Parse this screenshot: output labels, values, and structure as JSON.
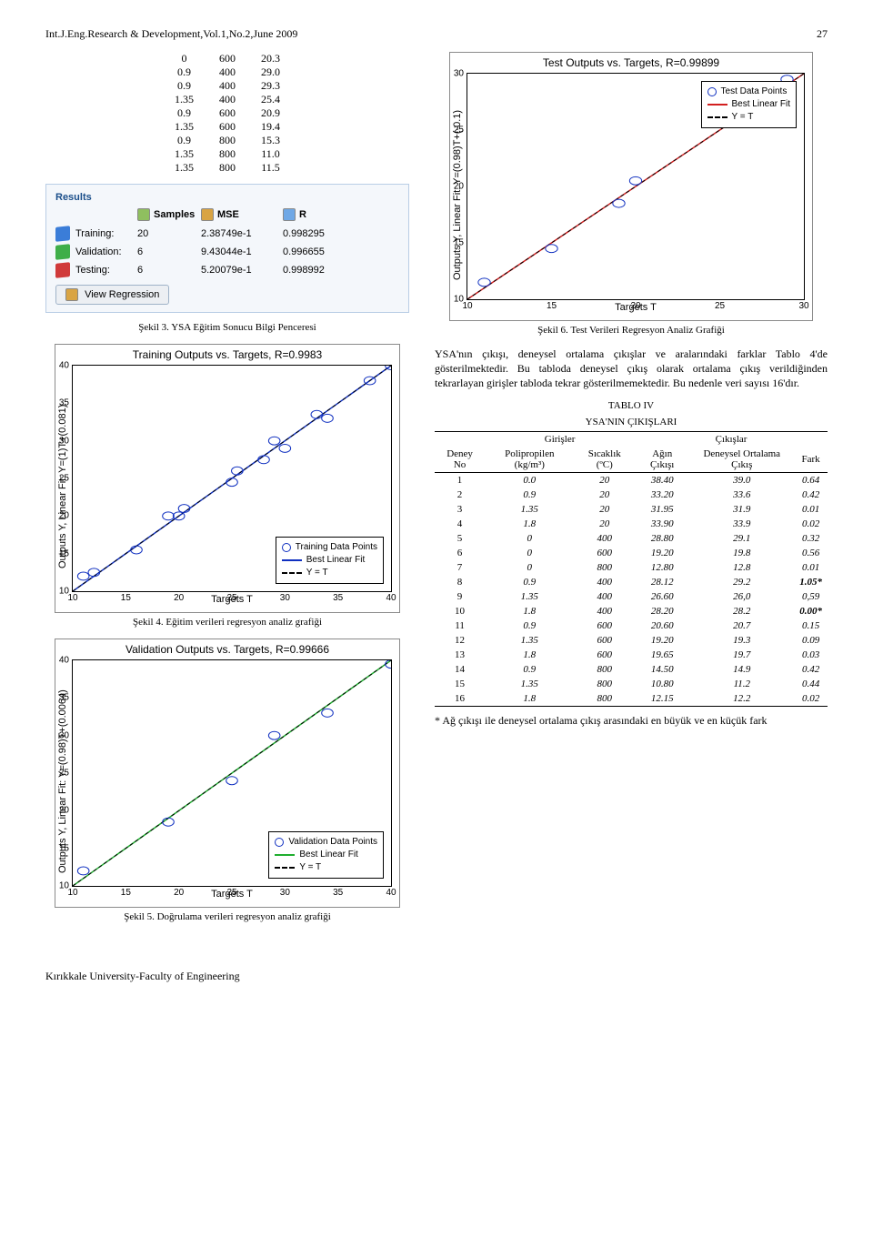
{
  "header": {
    "journal": "Int.J.Eng.Research & Development,Vol.1,No.2,June 2009",
    "page": "27"
  },
  "mini_table": {
    "rows": [
      [
        "0",
        "600",
        "20.3"
      ],
      [
        "0.9",
        "400",
        "29.0"
      ],
      [
        "0.9",
        "400",
        "29.3"
      ],
      [
        "1.35",
        "400",
        "25.4"
      ],
      [
        "0.9",
        "600",
        "20.9"
      ],
      [
        "1.35",
        "600",
        "19.4"
      ],
      [
        "0.9",
        "800",
        "15.3"
      ],
      [
        "1.35",
        "800",
        "11.0"
      ],
      [
        "1.35",
        "800",
        "11.5"
      ]
    ]
  },
  "results_panel": {
    "title": "Results",
    "head": [
      "",
      "Samples",
      "MSE",
      "R"
    ],
    "icons": {
      "samples_bg": "#8fbf5f",
      "mse_bg": "#d9a443",
      "r_bg": "#6fa8e6"
    },
    "rows": [
      {
        "cube": "#3b7dd8",
        "label": "Training:",
        "samples": "20",
        "mse": "2.38749e-1",
        "r": "0.998295"
      },
      {
        "cube": "#3fae49",
        "label": "Validation:",
        "samples": "6",
        "mse": "9.43044e-1",
        "r": "0.996655"
      },
      {
        "cube": "#d03a3a",
        "label": "Testing:",
        "samples": "6",
        "mse": "5.20079e-1",
        "r": "0.998992"
      }
    ],
    "button": "View Regression",
    "button_icon_bg": "#d9a443"
  },
  "captions": {
    "fig3": "Şekil 3. YSA Eğitim Sonucu Bilgi Penceresi",
    "fig4": "Şekil 4. Eğitim verileri regresyon analiz grafiği",
    "fig5": "Şekil 5. Doğrulama verileri regresyon analiz grafiği",
    "fig6": "Şekil 6. Test Verileri Regresyon Analiz Grafiği"
  },
  "charts": {
    "train": {
      "title": "Training Outputs vs. Targets, R=0.9983",
      "ylabel": "Outputs Y, Linear Fit: Y=(1)T+(0.081)",
      "xlabel": "Targets T",
      "xlim": [
        10,
        40
      ],
      "ylim": [
        10,
        40
      ],
      "xticks": [
        10,
        15,
        20,
        25,
        30,
        35,
        40
      ],
      "yticks": [
        10,
        15,
        20,
        25,
        30,
        35,
        40
      ],
      "line_color": "#1030c0",
      "marker_edge": "#1030c0",
      "dash_color": "#000000",
      "points": [
        [
          11,
          12
        ],
        [
          12,
          12.5
        ],
        [
          16,
          15.5
        ],
        [
          19,
          20
        ],
        [
          20,
          20
        ],
        [
          20.5,
          21
        ],
        [
          25,
          24.5
        ],
        [
          25.5,
          26
        ],
        [
          28,
          27.5
        ],
        [
          29,
          30
        ],
        [
          30,
          29
        ],
        [
          33,
          33.5
        ],
        [
          34,
          33
        ],
        [
          38,
          38
        ],
        [
          40,
          40
        ]
      ],
      "legend": {
        "pos": "bottom-right",
        "items": [
          "Training Data Points",
          "Best Linear Fit",
          "Y = T"
        ]
      }
    },
    "valid": {
      "title": "Validation Outputs vs. Targets, R=0.99666",
      "ylabel": "Outputs Y, Linear Fit: Y=(0.98)T+(0.0064)",
      "xlabel": "Targets T",
      "xlim": [
        10,
        40
      ],
      "ylim": [
        10,
        40
      ],
      "xticks": [
        10,
        15,
        20,
        25,
        30,
        35,
        40
      ],
      "yticks": [
        10,
        15,
        20,
        25,
        30,
        35,
        40
      ],
      "line_color": "#1fae2f",
      "marker_edge": "#1030c0",
      "dash_color": "#000000",
      "points": [
        [
          11,
          12
        ],
        [
          19,
          18.5
        ],
        [
          25,
          24
        ],
        [
          29,
          30
        ],
        [
          34,
          33
        ],
        [
          40,
          39.5
        ]
      ],
      "legend": {
        "pos": "bottom-right",
        "items": [
          "Validation Data Points",
          "Best Linear Fit",
          "Y = T"
        ]
      }
    },
    "test": {
      "title": "Test Outputs vs. Targets, R=0.99899",
      "ylabel": "Outputs Y, Linear Fit: Y=(0.98)T+(-0.1)",
      "xlabel": "Targets T",
      "xlim": [
        10,
        30
      ],
      "ylim": [
        10,
        30
      ],
      "xticks": [
        10,
        15,
        20,
        25,
        30
      ],
      "yticks": [
        10,
        15,
        20,
        25,
        30
      ],
      "line_color": "#d21f1f",
      "marker_edge": "#1030c0",
      "dash_color": "#000000",
      "points": [
        [
          11,
          11.5
        ],
        [
          15,
          14.5
        ],
        [
          19,
          18.5
        ],
        [
          20,
          20.5
        ],
        [
          28,
          27.5
        ],
        [
          29,
          29.5
        ]
      ],
      "legend": {
        "pos": "top-right-inset",
        "items": [
          "Test Data Points",
          "Best Linear Fit",
          "Y = T"
        ]
      }
    }
  },
  "paragraph": "YSA'nın çıkışı, deneysel ortalama çıkışlar ve aralarındaki farklar Tablo 4'de gösterilmektedir. Bu tabloda deneysel çıkış olarak ortalama çıkış verildiğinden tekrarlayan girişler tabloda tekrar gösterilmemektedir. Bu nedenle veri sayısı 16'dır.",
  "table4": {
    "title1": "TABLO IV",
    "title2": "YSA'NIN ÇIKIŞLARI",
    "group_heads": [
      "Girişler",
      "Çıkışlar"
    ],
    "cols": [
      "Deney No",
      "Polipropilen (kg/m³)",
      "Sıcaklık (ºC)",
      "Ağın Çıkışı",
      "Deneysel Ortalama Çıkış",
      "Fark"
    ],
    "rows": [
      [
        "1",
        "0.0",
        "20",
        "38.40",
        "39.0",
        "0.64"
      ],
      [
        "2",
        "0.9",
        "20",
        "33.20",
        "33.6",
        "0.42"
      ],
      [
        "3",
        "1.35",
        "20",
        "31.95",
        "31.9",
        "0.01"
      ],
      [
        "4",
        "1.8",
        "20",
        "33.90",
        "33.9",
        "0.02"
      ],
      [
        "5",
        "0",
        "400",
        "28.80",
        "29.1",
        "0.32"
      ],
      [
        "6",
        "0",
        "600",
        "19.20",
        "19.8",
        "0.56"
      ],
      [
        "7",
        "0",
        "800",
        "12.80",
        "12.8",
        "0.01"
      ],
      [
        "8",
        "0.9",
        "400",
        "28.12",
        "29.2",
        "1.05*"
      ],
      [
        "9",
        "1.35",
        "400",
        "26.60",
        "26,0",
        "0,59"
      ],
      [
        "10",
        "1.8",
        "400",
        "28.20",
        "28.2",
        "0.00*"
      ],
      [
        "11",
        "0.9",
        "600",
        "20.60",
        "20.7",
        "0.15"
      ],
      [
        "12",
        "1.35",
        "600",
        "19.20",
        "19.3",
        "0.09"
      ],
      [
        "13",
        "1.8",
        "600",
        "19.65",
        "19.7",
        "0.03"
      ],
      [
        "14",
        "0.9",
        "800",
        "14.50",
        "14.9",
        "0.42"
      ],
      [
        "15",
        "1.35",
        "800",
        "10.80",
        "11.2",
        "0.44"
      ],
      [
        "16",
        "1.8",
        "800",
        "12.15",
        "12.2",
        "0.02"
      ]
    ],
    "bold_rows": [
      7,
      9
    ]
  },
  "footnote": "* Ağ çıkışı ile deneysel ortalama çıkış arasındaki en büyük ve en küçük fark",
  "footer": "Kırıkkale University-Faculty of Engineering"
}
